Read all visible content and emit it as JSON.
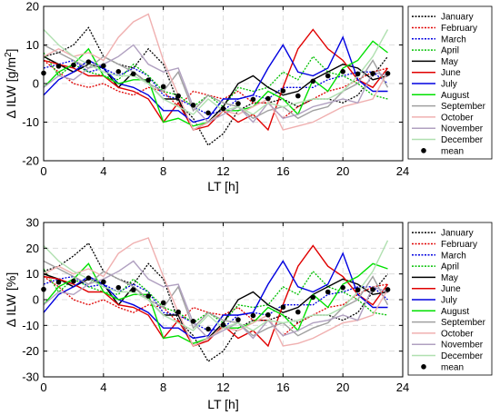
{
  "chart_data": [
    {
      "type": "line",
      "xlabel": "LT [h]",
      "ylabel": "Δ ILW [g/m²]",
      "ylabel_parts": {
        "main": "Δ ILW [g/m",
        "sup": "2",
        "end": "]"
      },
      "xlim": [
        0,
        24
      ],
      "ylim": [
        -20,
        20
      ],
      "xticks": [
        "0",
        "4",
        "8",
        "12",
        "16",
        "20",
        "24"
      ],
      "yticks": [
        "-20",
        "-10",
        "0",
        "10",
        "20"
      ],
      "grid": true,
      "legend_position": "right",
      "x": [
        0,
        1,
        2,
        3,
        4,
        5,
        6,
        7,
        8,
        9,
        10,
        11,
        12,
        13,
        14,
        15,
        16,
        17,
        18,
        19,
        20,
        21,
        22,
        23
      ],
      "series": [
        {
          "name": "January",
          "color": "#000000",
          "style": "dotted",
          "values": [
            7,
            8,
            10,
            14.5,
            7,
            5,
            4,
            9,
            5,
            -5,
            -9,
            -16,
            -13,
            -7,
            -5,
            -5,
            -4,
            -6,
            -4,
            -4,
            -5,
            -3,
            2,
            7
          ]
        },
        {
          "name": "February",
          "color": "#e00000",
          "style": "dotted",
          "values": [
            6,
            3,
            0,
            -1,
            0,
            -2,
            -3,
            -1,
            -2,
            -6,
            -2,
            -3,
            -4,
            -2,
            -5,
            -5,
            -9,
            -6,
            -4,
            -2,
            -1,
            1,
            3,
            4
          ]
        },
        {
          "name": "March",
          "color": "#0000e0",
          "style": "dotted",
          "values": [
            4,
            5,
            6,
            3,
            4,
            2,
            4,
            2,
            -3,
            -4,
            -6,
            -8,
            -7,
            -4,
            -3,
            -4,
            -1,
            -1,
            -1,
            1,
            2,
            3,
            3,
            0
          ]
        },
        {
          "name": "April",
          "color": "#00c000",
          "style": "dotted",
          "values": [
            8,
            2,
            5,
            3,
            2,
            1,
            5,
            2,
            -2,
            -3,
            -6,
            -3,
            -6,
            -1,
            -2,
            -1,
            3,
            1,
            7,
            3,
            2,
            0,
            -3,
            -4
          ]
        },
        {
          "name": "May",
          "color": "#000000",
          "style": "solid",
          "values": [
            7,
            5,
            3,
            5,
            4,
            -1,
            3,
            0,
            -4,
            -4,
            -12,
            -10,
            -6,
            0,
            2,
            -1,
            -3,
            -2,
            1,
            3,
            5,
            4,
            1,
            2
          ]
        },
        {
          "name": "June",
          "color": "#e00000",
          "style": "solid",
          "values": [
            6,
            5,
            4,
            2,
            2,
            -1,
            -2,
            -4,
            -10,
            -5,
            -12,
            -11,
            -7,
            -10,
            -8,
            -12,
            -1,
            9,
            14,
            9,
            6,
            1,
            -1,
            4
          ]
        },
        {
          "name": "July",
          "color": "#0000e0",
          "style": "solid",
          "values": [
            -3,
            1,
            3,
            6,
            4,
            0,
            -1,
            -3,
            -7,
            -7,
            -10,
            -9,
            -4,
            -4,
            -3,
            4,
            10,
            3,
            2,
            4,
            12,
            1,
            -2,
            -2
          ]
        },
        {
          "name": "August",
          "color": "#00e000",
          "style": "solid",
          "values": [
            -1,
            3,
            5,
            9,
            2,
            0,
            1,
            1,
            -10,
            -9,
            -11,
            -10,
            -7,
            -7,
            -6,
            -2,
            -4,
            -8,
            1,
            -2,
            4,
            6,
            11,
            8
          ]
        },
        {
          "name": "September",
          "color": "#a0a0a0",
          "style": "solid",
          "values": [
            10,
            8,
            6,
            4,
            7,
            5,
            3,
            0,
            -2,
            3,
            -7,
            -3,
            -5,
            -6,
            -9,
            -7,
            -6,
            -9,
            -7,
            -6,
            -2,
            0,
            6,
            -1
          ]
        },
        {
          "name": "October",
          "color": "#f0b0b0",
          "style": "solid",
          "values": [
            7,
            9,
            7,
            8,
            6,
            12,
            16,
            18,
            6,
            -3,
            -12,
            -10,
            -7,
            -8,
            -6,
            -4,
            -12,
            -11,
            -10,
            -8,
            -6,
            -5,
            -4,
            3
          ]
        },
        {
          "name": "November",
          "color": "#b0a0c0",
          "style": "solid",
          "values": [
            -1,
            2,
            1,
            4,
            5,
            7,
            10,
            5,
            3,
            4,
            -6,
            -10,
            -8,
            -6,
            -10,
            -5,
            -9,
            -8,
            -6,
            -5,
            -4,
            -5,
            3,
            2
          ]
        },
        {
          "name": "December",
          "color": "#b0e0b0",
          "style": "solid",
          "values": [
            14,
            10,
            7,
            5,
            3,
            2,
            2,
            0,
            -4,
            -6,
            -8,
            -4,
            -7,
            -6,
            -8,
            -5,
            -6,
            -5,
            -4,
            -4,
            -2,
            2,
            7,
            14
          ]
        },
        {
          "name": "mean",
          "color": "#000000",
          "style": "markers",
          "values": [
            2.7,
            4.5,
            4.8,
            5.6,
            4.6,
            3.1,
            2.5,
            0.9,
            -0.8,
            -3.2,
            -5.6,
            -7.6,
            -6.5,
            -5.2,
            -4.1,
            -3.9,
            -1.9,
            -3.2,
            0.6,
            2,
            3.1,
            2.5,
            2.6,
            2.6
          ]
        }
      ]
    },
    {
      "type": "line",
      "xlabel": "LT [h]",
      "ylabel": "Δ ILW [%]",
      "xlim": [
        0,
        24
      ],
      "ylim": [
        -30,
        30
      ],
      "xticks": [
        "0",
        "4",
        "8",
        "12",
        "16",
        "20",
        "24"
      ],
      "yticks": [
        "-30",
        "-20",
        "-10",
        "0",
        "10",
        "20",
        "30"
      ],
      "grid": true,
      "legend_position": "right",
      "x": [
        0,
        1,
        2,
        3,
        4,
        5,
        6,
        7,
        8,
        9,
        10,
        11,
        12,
        13,
        14,
        15,
        16,
        17,
        18,
        19,
        20,
        21,
        22,
        23
      ],
      "series": [
        {
          "name": "January",
          "color": "#000000",
          "style": "dotted",
          "values": [
            11,
            13,
            17,
            22,
            11,
            8,
            6,
            14,
            8,
            -8,
            -14,
            -24,
            -20,
            -11,
            -8,
            -8,
            -6,
            -9,
            -6,
            -6,
            -8,
            -5,
            3,
            10
          ]
        },
        {
          "name": "February",
          "color": "#e00000",
          "style": "dotted",
          "values": [
            9,
            5,
            0,
            -2,
            0,
            -3,
            -5,
            -2,
            -3,
            -9,
            -3,
            -5,
            -6,
            -3,
            -8,
            -8,
            -14,
            -9,
            -6,
            -3,
            -2,
            2,
            5,
            6
          ]
        },
        {
          "name": "March",
          "color": "#0000e0",
          "style": "dotted",
          "values": [
            6,
            8,
            9,
            5,
            6,
            3,
            6,
            3,
            -5,
            -6,
            -9,
            -12,
            -11,
            -6,
            -5,
            -6,
            -2,
            -2,
            -2,
            2,
            3,
            5,
            5,
            0
          ]
        },
        {
          "name": "April",
          "color": "#00c000",
          "style": "dotted",
          "values": [
            12,
            3,
            8,
            5,
            3,
            2,
            8,
            3,
            -3,
            -5,
            -9,
            -5,
            -9,
            -2,
            -3,
            -2,
            5,
            2,
            11,
            5,
            3,
            0,
            -5,
            -6
          ]
        },
        {
          "name": "May",
          "color": "#000000",
          "style": "solid",
          "values": [
            10,
            8,
            5,
            8,
            6,
            -2,
            5,
            0,
            -6,
            -6,
            -18,
            -15,
            -9,
            0,
            3,
            -2,
            -5,
            -3,
            2,
            5,
            8,
            6,
            2,
            3
          ]
        },
        {
          "name": "June",
          "color": "#e00000",
          "style": "solid",
          "values": [
            9,
            8,
            6,
            3,
            3,
            -2,
            -3,
            -6,
            -15,
            -8,
            -18,
            -16,
            -10,
            -15,
            -12,
            -18,
            -2,
            13,
            21,
            13,
            9,
            2,
            -2,
            6
          ]
        },
        {
          "name": "July",
          "color": "#0000e0",
          "style": "solid",
          "values": [
            -5,
            2,
            5,
            9,
            6,
            0,
            -2,
            -5,
            -11,
            -11,
            -15,
            -14,
            -6,
            -6,
            -5,
            6,
            15,
            5,
            3,
            6,
            18,
            2,
            -3,
            -3
          ]
        },
        {
          "name": "August",
          "color": "#00e000",
          "style": "solid",
          "values": [
            -2,
            5,
            8,
            14,
            3,
            0,
            2,
            2,
            -15,
            -14,
            -17,
            -15,
            -11,
            -11,
            -9,
            -3,
            -6,
            -12,
            2,
            -3,
            6,
            9,
            14,
            12
          ]
        },
        {
          "name": "September",
          "color": "#a0a0a0",
          "style": "solid",
          "values": [
            15,
            12,
            9,
            6,
            11,
            8,
            5,
            0,
            -3,
            5,
            -11,
            -5,
            -8,
            -9,
            -14,
            -11,
            -9,
            -14,
            -11,
            -9,
            -3,
            0,
            9,
            -2
          ]
        },
        {
          "name": "October",
          "color": "#f0b0b0",
          "style": "solid",
          "values": [
            10,
            13,
            10,
            12,
            9,
            18,
            22,
            24,
            9,
            -5,
            -18,
            -15,
            -11,
            -12,
            -9,
            -6,
            -18,
            -17,
            -15,
            -12,
            -9,
            -8,
            -6,
            4
          ]
        },
        {
          "name": "November",
          "color": "#b0a0c0",
          "style": "solid",
          "values": [
            -2,
            3,
            2,
            6,
            8,
            11,
            15,
            8,
            5,
            6,
            -9,
            -15,
            -12,
            -9,
            -15,
            -8,
            -14,
            -12,
            -9,
            -8,
            -6,
            -8,
            5,
            3
          ]
        },
        {
          "name": "December",
          "color": "#b0e0b0",
          "style": "solid",
          "values": [
            21,
            15,
            11,
            8,
            5,
            3,
            3,
            0,
            -6,
            -9,
            -12,
            -6,
            -11,
            -9,
            -12,
            -8,
            -9,
            -8,
            -6,
            -6,
            -3,
            3,
            11,
            23
          ]
        },
        {
          "name": "mean",
          "color": "#000000",
          "style": "markers",
          "values": [
            4,
            6.8,
            7.2,
            8.4,
            6.9,
            4.7,
            3.8,
            1.4,
            -1.2,
            -4.8,
            -8.4,
            -11.4,
            -9.8,
            -7.8,
            -6.2,
            -5.9,
            -2.9,
            -4.8,
            0.9,
            3,
            4.7,
            3.8,
            3.9,
            3.9
          ]
        }
      ]
    }
  ]
}
